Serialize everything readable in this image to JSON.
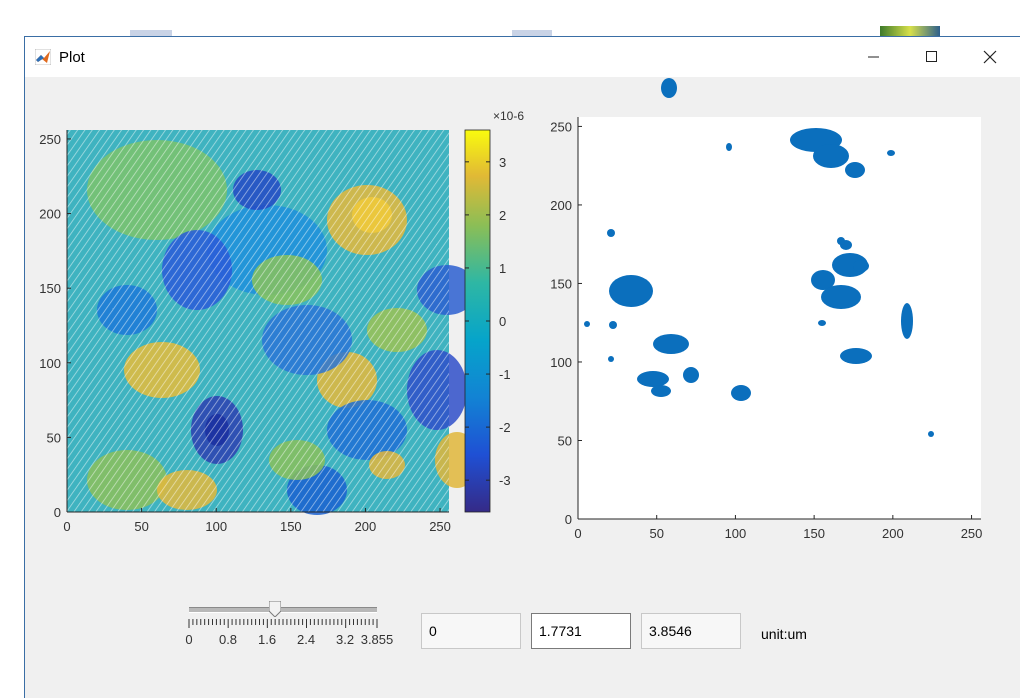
{
  "window": {
    "title": "Plot"
  },
  "left_plot": {
    "x_ticks": [
      "0",
      "50",
      "100",
      "150",
      "200",
      "250"
    ],
    "y_ticks": [
      "0",
      "50",
      "100",
      "150",
      "200",
      "250"
    ]
  },
  "colorbar": {
    "exponent": "×10-6",
    "ticks": [
      "3",
      "2",
      "1",
      "0",
      "-1",
      "-2",
      "-3"
    ]
  },
  "right_plot": {
    "x_ticks": [
      "0",
      "50",
      "100",
      "150",
      "200",
      "250"
    ],
    "y_ticks": [
      "0",
      "50",
      "100",
      "150",
      "200",
      "250"
    ]
  },
  "slider": {
    "min": 0,
    "max": 3.855,
    "value": 1.7731,
    "tick_labels": [
      "0",
      "0.8",
      "1.6",
      "2.4",
      "3.2",
      "3.855"
    ]
  },
  "fields": {
    "min_value": "0",
    "current_value": "1.7731",
    "max_value": "3.8546"
  },
  "unit_label": "unit:um",
  "colors": {
    "mask_blue": "#0b6fbd",
    "title_bar": "#ffffff",
    "window_bg": "#f0f0f0"
  }
}
